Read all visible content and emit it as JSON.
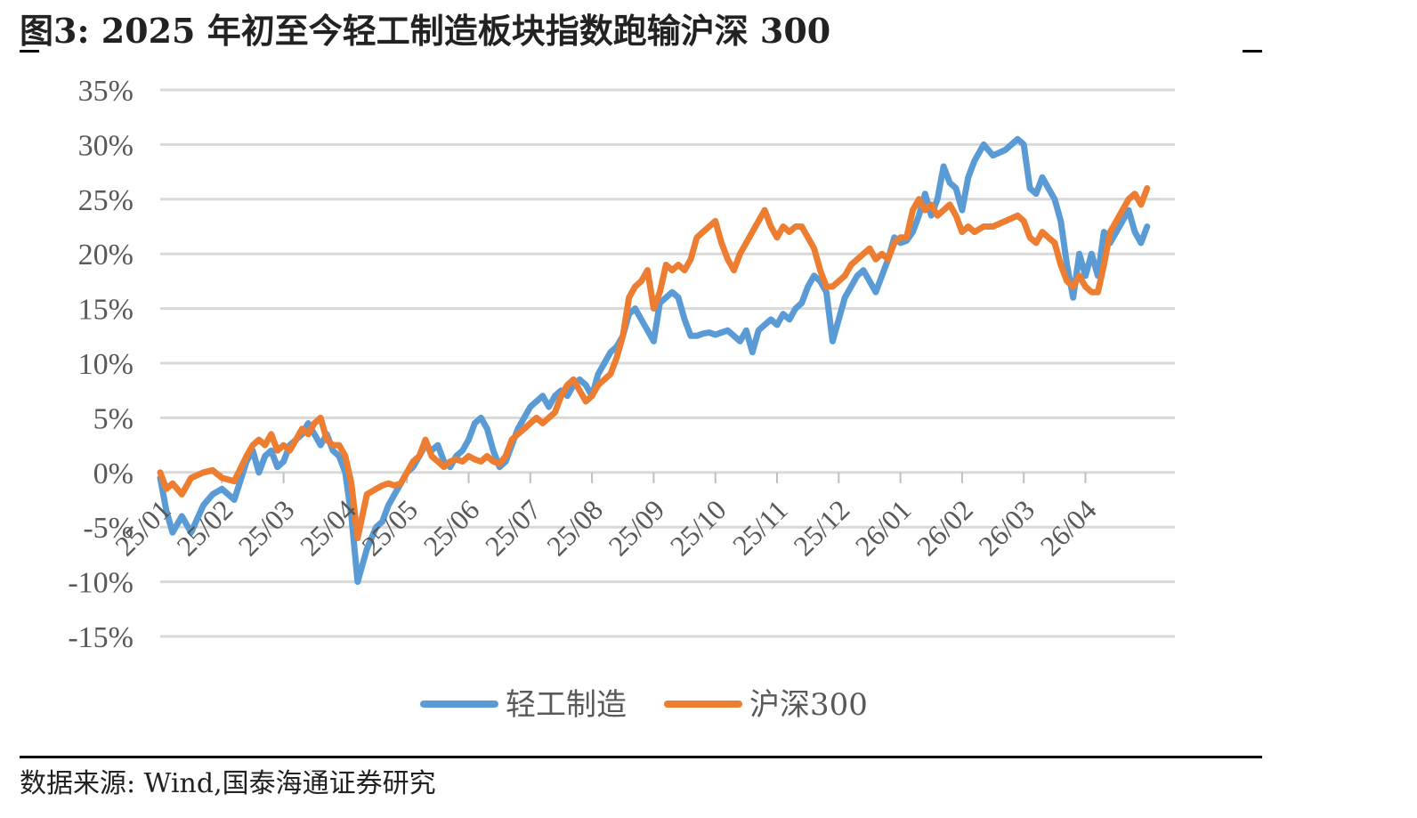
{
  "figure": {
    "title": "图3:  2025 年初至今轻工制造板块指数跑输沪深 300",
    "source": "数据来源:  Wind,国泰海通证券研究"
  },
  "chart_data": {
    "type": "line",
    "ylim": [
      -15,
      35
    ],
    "y_ticks": [
      "35%",
      "30%",
      "25%",
      "20%",
      "15%",
      "10%",
      "5%",
      "0%",
      "-5%",
      "-10%",
      "-15%"
    ],
    "x_ticks": [
      "25/01",
      "25/02",
      "25/03",
      "25/04",
      "25/05",
      "25/06",
      "25/07",
      "25/08",
      "25/09",
      "25/10",
      "25/11",
      "25/12",
      "26/01",
      "26/02",
      "26/03",
      "26/04"
    ],
    "grid": true,
    "legend_position": "bottom",
    "series": [
      {
        "name": "轻工制造",
        "color": "#5B9BD5",
        "points": [
          [
            0.0,
            -0.5
          ],
          [
            0.1,
            -3.5
          ],
          [
            0.2,
            -5.5
          ],
          [
            0.35,
            -4
          ],
          [
            0.5,
            -5.5
          ],
          [
            0.7,
            -3
          ],
          [
            0.85,
            -2
          ],
          [
            1.0,
            -1.5
          ],
          [
            1.2,
            -2.5
          ],
          [
            1.4,
            1
          ],
          [
            1.5,
            2
          ],
          [
            1.6,
            0
          ],
          [
            1.7,
            1.5
          ],
          [
            1.8,
            2
          ],
          [
            1.9,
            0.5
          ],
          [
            2.0,
            1
          ],
          [
            2.1,
            2.5
          ],
          [
            2.2,
            3
          ],
          [
            2.3,
            3.5
          ],
          [
            2.4,
            4.5
          ],
          [
            2.5,
            3.5
          ],
          [
            2.6,
            2.5
          ],
          [
            2.7,
            3.5
          ],
          [
            2.8,
            2
          ],
          [
            2.9,
            1.5
          ],
          [
            3.0,
            0
          ],
          [
            3.1,
            -4
          ],
          [
            3.2,
            -10
          ],
          [
            3.35,
            -7
          ],
          [
            3.5,
            -5
          ],
          [
            3.6,
            -4.5
          ],
          [
            3.7,
            -3
          ],
          [
            3.8,
            -2
          ],
          [
            3.9,
            -1
          ],
          [
            4.0,
            0
          ],
          [
            4.1,
            0.5
          ],
          [
            4.2,
            1.5
          ],
          [
            4.3,
            2.5
          ],
          [
            4.4,
            2
          ],
          [
            4.5,
            2.5
          ],
          [
            4.6,
            1
          ],
          [
            4.7,
            0.5
          ],
          [
            4.8,
            1.5
          ],
          [
            4.9,
            2
          ],
          [
            5.0,
            3
          ],
          [
            5.1,
            4.5
          ],
          [
            5.2,
            5
          ],
          [
            5.3,
            4
          ],
          [
            5.4,
            2
          ],
          [
            5.5,
            0.5
          ],
          [
            5.6,
            1
          ],
          [
            5.7,
            2.5
          ],
          [
            5.8,
            4
          ],
          [
            5.9,
            5
          ],
          [
            6.0,
            6
          ],
          [
            6.1,
            6.5
          ],
          [
            6.2,
            7
          ],
          [
            6.3,
            6
          ],
          [
            6.4,
            7
          ],
          [
            6.5,
            7.5
          ],
          [
            6.6,
            7
          ],
          [
            6.7,
            8
          ],
          [
            6.8,
            8.5
          ],
          [
            6.9,
            8
          ],
          [
            7.0,
            7
          ],
          [
            7.1,
            9
          ],
          [
            7.2,
            10
          ],
          [
            7.3,
            11
          ],
          [
            7.4,
            11.5
          ],
          [
            7.5,
            12.5
          ],
          [
            7.6,
            14.5
          ],
          [
            7.7,
            15
          ],
          [
            7.8,
            14
          ],
          [
            7.9,
            13
          ],
          [
            8.0,
            12
          ],
          [
            8.1,
            15.5
          ],
          [
            8.2,
            16
          ],
          [
            8.3,
            16.5
          ],
          [
            8.4,
            16
          ],
          [
            8.5,
            14
          ],
          [
            8.6,
            12.5
          ],
          [
            8.7,
            12.5
          ],
          [
            8.8,
            12.7
          ],
          [
            8.9,
            12.8
          ],
          [
            9.0,
            12.6
          ],
          [
            9.1,
            12.8
          ],
          [
            9.2,
            13
          ],
          [
            9.3,
            12.5
          ],
          [
            9.4,
            12
          ],
          [
            9.5,
            13
          ],
          [
            9.6,
            11
          ],
          [
            9.7,
            13
          ],
          [
            9.8,
            13.5
          ],
          [
            9.9,
            14
          ],
          [
            10.0,
            13.5
          ],
          [
            10.1,
            14.5
          ],
          [
            10.2,
            14
          ],
          [
            10.3,
            15
          ],
          [
            10.4,
            15.5
          ],
          [
            10.5,
            17
          ],
          [
            10.6,
            18
          ],
          [
            10.7,
            17.5
          ],
          [
            10.8,
            16.5
          ],
          [
            10.9,
            12
          ],
          [
            11.0,
            14
          ],
          [
            11.1,
            16
          ],
          [
            11.2,
            17
          ],
          [
            11.3,
            18
          ],
          [
            11.4,
            18.5
          ],
          [
            11.5,
            17.5
          ],
          [
            11.6,
            16.5
          ],
          [
            11.7,
            18
          ],
          [
            11.8,
            19.5
          ],
          [
            11.9,
            21.5
          ],
          [
            12.0,
            21
          ],
          [
            12.1,
            21.2
          ],
          [
            12.2,
            22
          ],
          [
            12.3,
            23.5
          ],
          [
            12.4,
            25.5
          ],
          [
            12.5,
            23.5
          ],
          [
            12.6,
            25
          ],
          [
            12.7,
            28
          ],
          [
            12.8,
            26.5
          ],
          [
            12.9,
            26
          ],
          [
            13.0,
            24
          ],
          [
            13.1,
            27
          ],
          [
            13.2,
            28.5
          ],
          [
            13.35,
            30
          ],
          [
            13.5,
            29
          ],
          [
            13.7,
            29.5
          ],
          [
            13.9,
            30.5
          ],
          [
            14.0,
            30
          ],
          [
            14.1,
            26
          ],
          [
            14.2,
            25.5
          ],
          [
            14.3,
            27
          ],
          [
            14.4,
            26
          ],
          [
            14.5,
            25
          ],
          [
            14.6,
            23
          ],
          [
            14.7,
            19
          ],
          [
            14.8,
            16
          ],
          [
            14.9,
            20
          ],
          [
            15.0,
            18
          ],
          [
            15.1,
            20
          ],
          [
            15.2,
            18
          ],
          [
            15.3,
            22
          ],
          [
            15.4,
            21
          ],
          [
            15.5,
            22
          ],
          [
            15.6,
            23
          ],
          [
            15.7,
            24
          ],
          [
            15.8,
            22
          ],
          [
            15.9,
            21
          ],
          [
            16.0,
            22.5
          ]
        ]
      },
      {
        "name": "沪深300",
        "color": "#ED7D31",
        "points": [
          [
            0.0,
            0
          ],
          [
            0.1,
            -1.5
          ],
          [
            0.2,
            -1
          ],
          [
            0.35,
            -2
          ],
          [
            0.5,
            -0.5
          ],
          [
            0.7,
            0
          ],
          [
            0.85,
            0.2
          ],
          [
            1.0,
            -0.5
          ],
          [
            1.2,
            -0.8
          ],
          [
            1.4,
            1.5
          ],
          [
            1.5,
            2.5
          ],
          [
            1.6,
            3
          ],
          [
            1.7,
            2.5
          ],
          [
            1.8,
            3.5
          ],
          [
            1.9,
            2
          ],
          [
            2.0,
            2.5
          ],
          [
            2.1,
            2
          ],
          [
            2.2,
            3
          ],
          [
            2.3,
            4
          ],
          [
            2.4,
            3.5
          ],
          [
            2.5,
            4.5
          ],
          [
            2.6,
            5
          ],
          [
            2.7,
            3
          ],
          [
            2.8,
            2.5
          ],
          [
            2.9,
            2.5
          ],
          [
            3.0,
            1.5
          ],
          [
            3.1,
            -1
          ],
          [
            3.2,
            -6
          ],
          [
            3.35,
            -2
          ],
          [
            3.5,
            -1.5
          ],
          [
            3.6,
            -1.2
          ],
          [
            3.7,
            -1
          ],
          [
            3.8,
            -1.2
          ],
          [
            3.9,
            -1
          ],
          [
            4.0,
            0
          ],
          [
            4.1,
            1
          ],
          [
            4.2,
            1.5
          ],
          [
            4.3,
            3
          ],
          [
            4.4,
            1.5
          ],
          [
            4.5,
            1
          ],
          [
            4.6,
            0.5
          ],
          [
            4.7,
            1
          ],
          [
            4.8,
            1.2
          ],
          [
            4.9,
            1
          ],
          [
            5.0,
            1.5
          ],
          [
            5.1,
            1.2
          ],
          [
            5.2,
            1
          ],
          [
            5.3,
            1.5
          ],
          [
            5.4,
            1
          ],
          [
            5.5,
            0.8
          ],
          [
            5.6,
            1.5
          ],
          [
            5.7,
            3
          ],
          [
            5.8,
            3.5
          ],
          [
            5.9,
            4
          ],
          [
            6.0,
            4.5
          ],
          [
            6.1,
            5
          ],
          [
            6.2,
            4.5
          ],
          [
            6.3,
            5
          ],
          [
            6.4,
            5.5
          ],
          [
            6.5,
            7
          ],
          [
            6.6,
            8
          ],
          [
            6.7,
            8.5
          ],
          [
            6.8,
            7.5
          ],
          [
            6.9,
            6.5
          ],
          [
            7.0,
            7
          ],
          [
            7.1,
            8
          ],
          [
            7.2,
            8.5
          ],
          [
            7.3,
            9
          ],
          [
            7.4,
            10.5
          ],
          [
            7.5,
            12.5
          ],
          [
            7.6,
            16
          ],
          [
            7.7,
            17
          ],
          [
            7.8,
            17.5
          ],
          [
            7.9,
            18.5
          ],
          [
            8.0,
            15
          ],
          [
            8.1,
            16.5
          ],
          [
            8.2,
            19
          ],
          [
            8.3,
            18.5
          ],
          [
            8.4,
            19
          ],
          [
            8.5,
            18.5
          ],
          [
            8.6,
            19.5
          ],
          [
            8.7,
            21.5
          ],
          [
            8.8,
            22
          ],
          [
            8.9,
            22.5
          ],
          [
            9.0,
            23
          ],
          [
            9.1,
            21
          ],
          [
            9.2,
            19.5
          ],
          [
            9.3,
            18.5
          ],
          [
            9.4,
            20
          ],
          [
            9.5,
            21
          ],
          [
            9.6,
            22
          ],
          [
            9.7,
            23
          ],
          [
            9.8,
            24
          ],
          [
            9.9,
            22.5
          ],
          [
            10.0,
            21.5
          ],
          [
            10.1,
            22.5
          ],
          [
            10.2,
            22
          ],
          [
            10.3,
            22.5
          ],
          [
            10.4,
            22.5
          ],
          [
            10.5,
            21.5
          ],
          [
            10.6,
            20.5
          ],
          [
            10.7,
            18.5
          ],
          [
            10.8,
            17
          ],
          [
            10.9,
            17
          ],
          [
            11.0,
            17.5
          ],
          [
            11.1,
            18
          ],
          [
            11.2,
            19
          ],
          [
            11.3,
            19.5
          ],
          [
            11.4,
            20
          ],
          [
            11.5,
            20.5
          ],
          [
            11.6,
            19.5
          ],
          [
            11.7,
            20
          ],
          [
            11.8,
            19.5
          ],
          [
            11.9,
            21
          ],
          [
            12.0,
            21.5
          ],
          [
            12.1,
            21.5
          ],
          [
            12.2,
            24
          ],
          [
            12.3,
            25
          ],
          [
            12.4,
            24
          ],
          [
            12.5,
            24.5
          ],
          [
            12.6,
            23.5
          ],
          [
            12.7,
            24
          ],
          [
            12.8,
            24.5
          ],
          [
            12.9,
            23.5
          ],
          [
            13.0,
            22
          ],
          [
            13.1,
            22.5
          ],
          [
            13.2,
            22
          ],
          [
            13.35,
            22.5
          ],
          [
            13.5,
            22.5
          ],
          [
            13.7,
            23
          ],
          [
            13.9,
            23.5
          ],
          [
            14.0,
            23
          ],
          [
            14.1,
            21.5
          ],
          [
            14.2,
            21
          ],
          [
            14.3,
            22
          ],
          [
            14.4,
            21.5
          ],
          [
            14.5,
            21
          ],
          [
            14.6,
            19
          ],
          [
            14.7,
            17.5
          ],
          [
            14.8,
            17
          ],
          [
            14.9,
            18
          ],
          [
            15.0,
            17
          ],
          [
            15.1,
            16.5
          ],
          [
            15.2,
            16.5
          ],
          [
            15.3,
            19
          ],
          [
            15.4,
            22
          ],
          [
            15.5,
            23
          ],
          [
            15.6,
            24
          ],
          [
            15.7,
            25
          ],
          [
            15.8,
            25.5
          ],
          [
            15.9,
            24.5
          ],
          [
            16.0,
            26
          ]
        ]
      }
    ]
  }
}
